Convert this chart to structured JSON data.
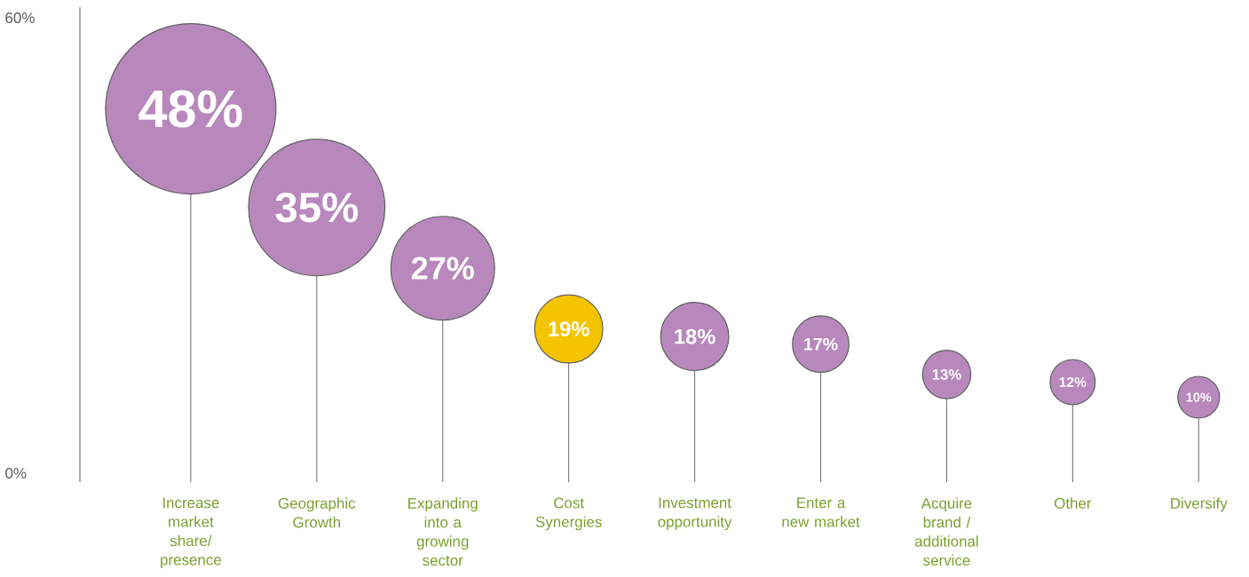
{
  "chart_data": {
    "type": "lollipop",
    "categories": [
      "Increase market share/ presence",
      "Geographic Growth",
      "Expanding into a growing sector",
      "Cost Synergies",
      "Investment opportunity",
      "Enter a new market",
      "Acquire brand / additional service",
      "Other",
      "Diversify"
    ],
    "values": [
      48,
      35,
      27,
      19,
      18,
      17,
      13,
      12,
      10
    ],
    "sizes": [
      1,
      0.64,
      0.37,
      0.16,
      0.16,
      0.11,
      0.08,
      0.07,
      0.06
    ],
    "value_labels": [
      "48%",
      "35%",
      "27%",
      "19%",
      "18%",
      "17%",
      "13%",
      "12%",
      "10%"
    ],
    "colors": [
      "#b888bd",
      "#b888bd",
      "#b888bd",
      "#f5c400",
      "#b888bd",
      "#b888bd",
      "#b888bd",
      "#b888bd",
      "#b888bd"
    ],
    "ylim": [
      0,
      60
    ],
    "yticks": [
      {
        "value": 0,
        "label": "0%"
      },
      {
        "value": 60,
        "label": "60%"
      }
    ]
  }
}
